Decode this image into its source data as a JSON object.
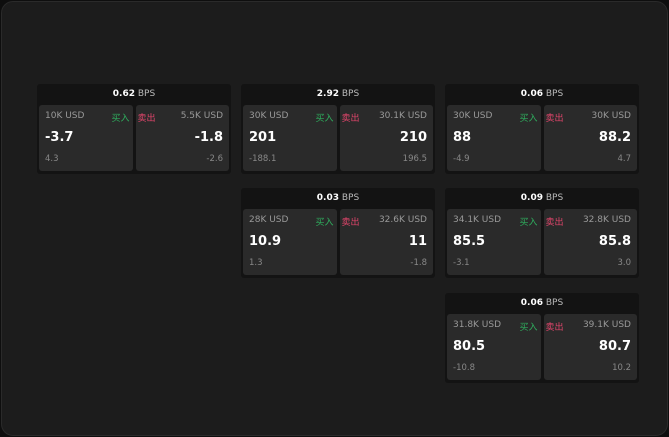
{
  "unit": "BPS",
  "buy_label": "买入",
  "sell_label": "卖出",
  "colors": {
    "buy": "#2fae5e",
    "sell": "#e0456b"
  },
  "cards": [
    {
      "bps": "0.62",
      "buy": {
        "size": "10K USD",
        "value": "-3.7",
        "sub": "4.3"
      },
      "sell": {
        "size": "5.5K USD",
        "value": "-1.8",
        "sub": "-2.6"
      }
    },
    {
      "bps": "2.92",
      "buy": {
        "size": "30K USD",
        "value": "201",
        "sub": "-188.1"
      },
      "sell": {
        "size": "30.1K USD",
        "value": "210",
        "sub": "196.5"
      }
    },
    {
      "bps": "0.06",
      "buy": {
        "size": "30K USD",
        "value": "88",
        "sub": "-4.9"
      },
      "sell": {
        "size": "30K USD",
        "value": "88.2",
        "sub": "4.7"
      }
    },
    {
      "bps": "0.03",
      "buy": {
        "size": "28K USD",
        "value": "10.9",
        "sub": "1.3"
      },
      "sell": {
        "size": "32.6K USD",
        "value": "11",
        "sub": "-1.8"
      }
    },
    {
      "bps": "0.09",
      "buy": {
        "size": "34.1K USD",
        "value": "85.5",
        "sub": "-3.1"
      },
      "sell": {
        "size": "32.8K USD",
        "value": "85.8",
        "sub": "3.0"
      }
    },
    {
      "bps": "0.06",
      "buy": {
        "size": "31.8K USD",
        "value": "80.5",
        "sub": "-10.8"
      },
      "sell": {
        "size": "39.1K USD",
        "value": "80.7",
        "sub": "10.2"
      }
    }
  ]
}
